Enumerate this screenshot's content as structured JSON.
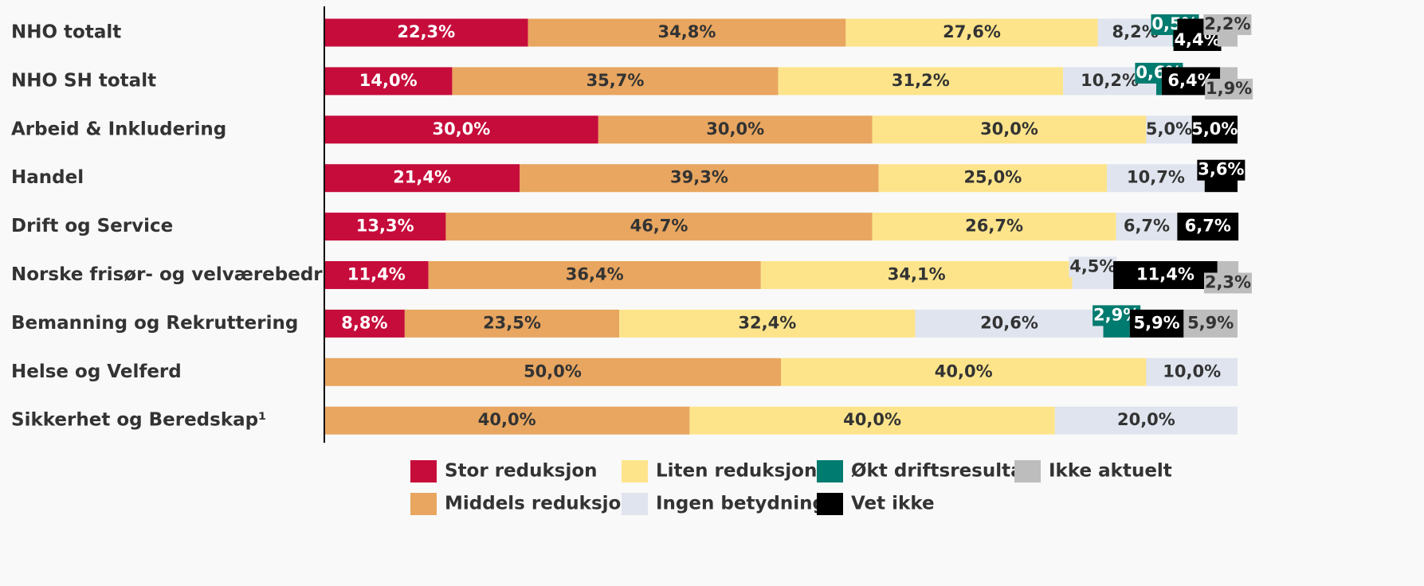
{
  "chart_data": {
    "type": "stacked-bar-horizontal",
    "categories": [
      "NHO totalt",
      "NHO SH totalt",
      "Arbeid & Inkludering",
      "Handel",
      "Drift og Service",
      "Norske frisør- og velværebedrifter",
      "Bemanning og Rekruttering",
      "Helse og Velferd",
      "Sikkerhet og Beredskap¹"
    ],
    "xlim": [
      0,
      100
    ],
    "series": [
      {
        "name": "Stor reduksjon",
        "color": "#c60c3b",
        "values": [
          22.3,
          14.0,
          30.0,
          21.4,
          13.3,
          11.4,
          8.8,
          null,
          null
        ],
        "value_labels": [
          "22,3%",
          "14,0%",
          "30,0%",
          "21,4%",
          "13,3%",
          "11,4%",
          "8,8%",
          null,
          null
        ]
      },
      {
        "name": "Middels reduksjon",
        "color": "#e8a660",
        "values": [
          34.8,
          35.7,
          30.0,
          39.3,
          46.7,
          36.4,
          23.5,
          50.0,
          40.0
        ],
        "value_labels": [
          "34,8%",
          "35,7%",
          "30,0%",
          "39,3%",
          "46,7%",
          "36,4%",
          "23,5%",
          "50,0%",
          "40,0%"
        ]
      },
      {
        "name": "Liten reduksjon",
        "color": "#fde48b",
        "values": [
          27.6,
          31.2,
          30.0,
          25.0,
          26.7,
          34.1,
          32.4,
          40.0,
          40.0
        ],
        "value_labels": [
          "27,6%",
          "31,2%",
          "30,0%",
          "25,0%",
          "26,7%",
          "34,1%",
          "32,4%",
          "40,0%",
          "40,0%"
        ]
      },
      {
        "name": "Ingen betydning",
        "color": "#dfe4ee",
        "values": [
          8.2,
          10.2,
          5.0,
          10.7,
          6.7,
          4.5,
          20.6,
          10.0,
          20.0
        ],
        "value_labels": [
          "8,2%",
          "10,2%",
          "5,0%",
          "10,7%",
          "6,7%",
          "4,5%",
          "20,6%",
          "10,0%",
          "20,0%"
        ]
      },
      {
        "name": "Økt driftsresultat",
        "color": "#007b6f",
        "values": [
          0.5,
          0.6,
          null,
          null,
          null,
          null,
          2.9,
          null,
          null
        ],
        "value_labels": [
          "0,5%",
          "0,6%",
          null,
          null,
          null,
          null,
          "2,9%",
          null,
          null
        ]
      },
      {
        "name": "Vet ikke",
        "color": "#000000",
        "values": [
          4.4,
          6.4,
          5.0,
          3.6,
          6.7,
          11.4,
          5.9,
          null,
          null
        ],
        "value_labels": [
          "4,4%",
          "6,4%",
          "5,0%",
          "3,6%",
          "6,7%",
          "11,4%",
          "5,9%",
          null,
          null
        ]
      },
      {
        "name": "Ikke aktuelt",
        "color": "#bdbdbd",
        "values": [
          2.2,
          1.9,
          null,
          null,
          null,
          2.3,
          5.9,
          null,
          null
        ],
        "value_labels": [
          "2,2%",
          "1,9%",
          null,
          null,
          null,
          "2,3%",
          "5,9%",
          null,
          null
        ]
      }
    ]
  }
}
